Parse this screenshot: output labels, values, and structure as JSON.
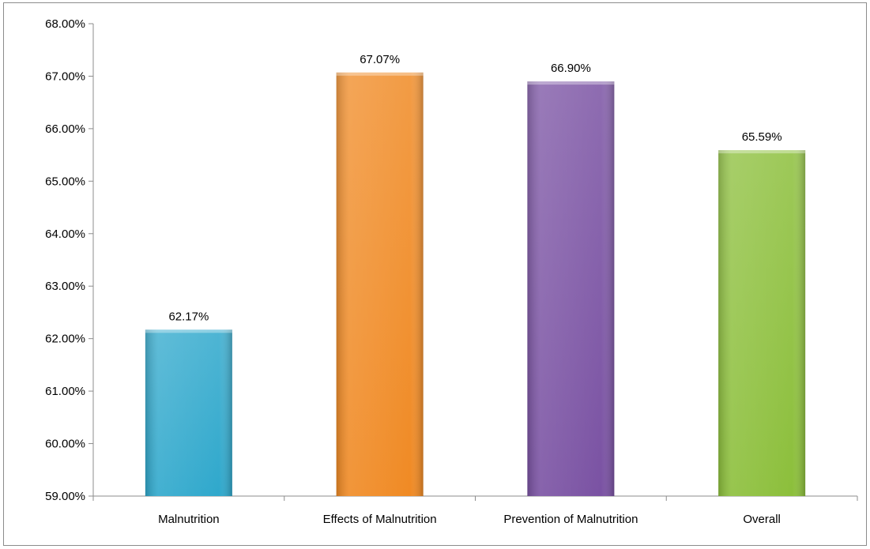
{
  "chart_data": {
    "type": "bar",
    "categories": [
      "Malnutrition",
      "Effects of Malnutrition",
      "Prevention of Malnutrition",
      "Overall"
    ],
    "values": [
      62.17,
      67.07,
      66.9,
      65.59
    ],
    "data_labels": [
      "62.17%",
      "67.07%",
      "66.90%",
      "65.59%"
    ],
    "ylim": [
      59,
      68
    ],
    "yticks": [
      59,
      60,
      61,
      62,
      63,
      64,
      65,
      66,
      67,
      68
    ],
    "ytick_labels": [
      "59.00%",
      "60.00%",
      "61.00%",
      "62.00%",
      "63.00%",
      "64.00%",
      "65.00%",
      "66.00%",
      "67.00%",
      "68.00%"
    ],
    "title": "",
    "xlabel": "",
    "ylabel": "",
    "grid": false,
    "legend": "none",
    "colors": [
      "#2fa8cc",
      "#f08a24",
      "#7a52a3",
      "#8cbf3b"
    ]
  }
}
